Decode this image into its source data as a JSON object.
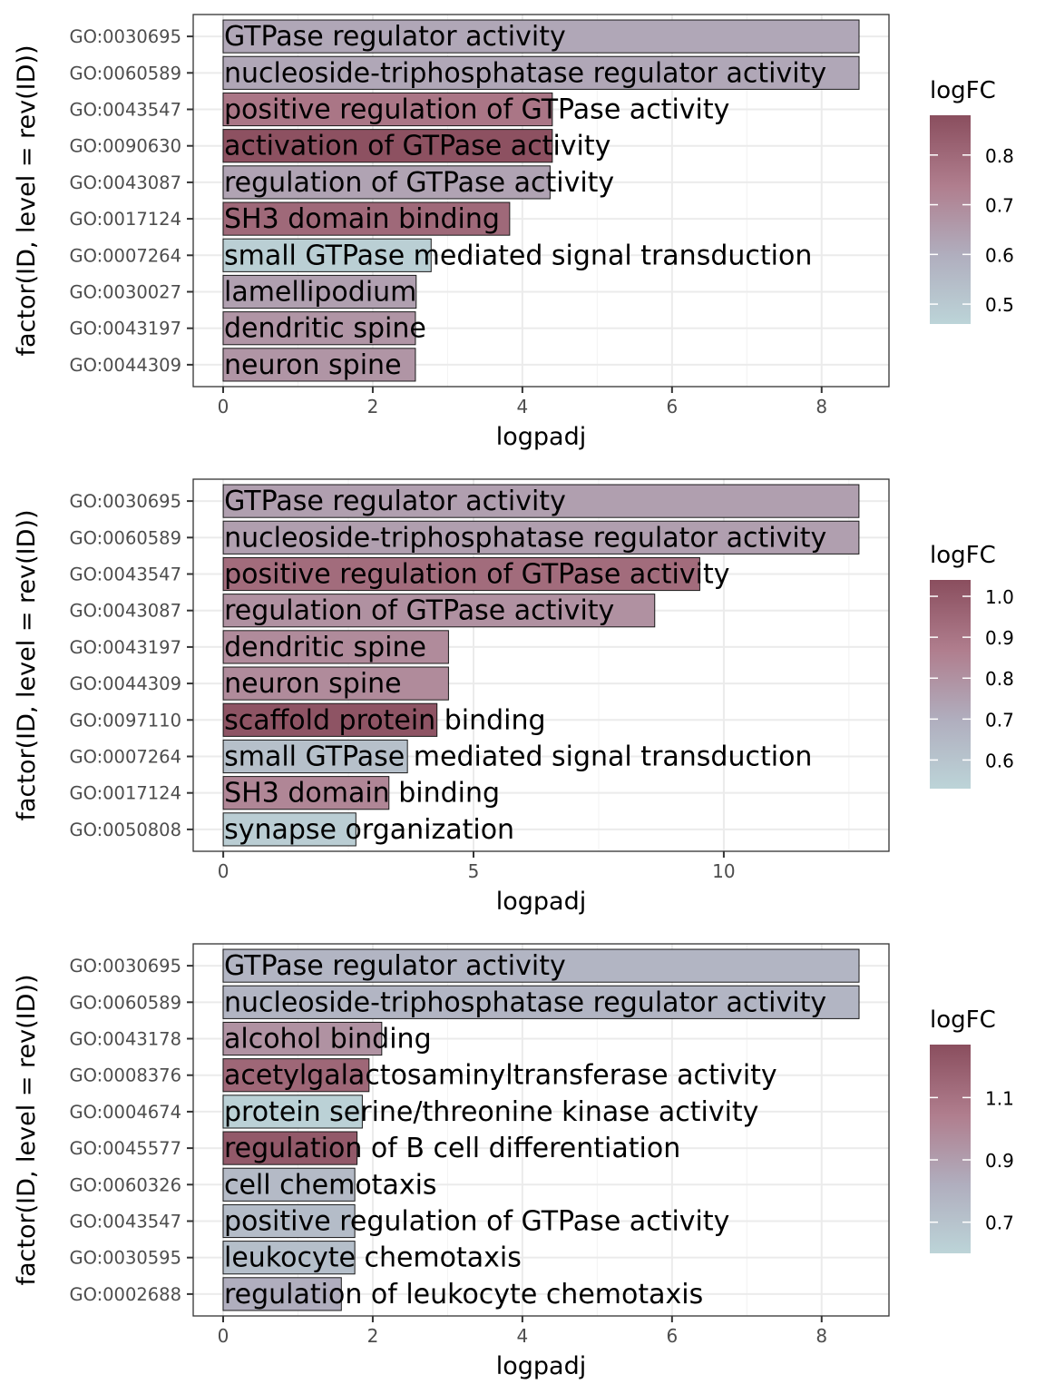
{
  "chart_data": [
    {
      "type": "bar",
      "orientation": "horizontal",
      "xlabel": "logpadj",
      "ylabel": "factor(ID, level = rev(ID))",
      "xlim": [
        -0.4,
        8.9
      ],
      "xticks": [
        0,
        2,
        4,
        6,
        8
      ],
      "grid": true,
      "legend_title": "logFC",
      "legend_position": "right",
      "legend_range": [
        0.46,
        0.88
      ],
      "legend_ticks": [
        0.5,
        0.6,
        0.7,
        0.8
      ],
      "legend_tick_labels": [
        "0.5",
        "0.6",
        "0.7",
        "0.8"
      ],
      "ids": [
        "GO:0030695",
        "GO:0060589",
        "GO:0043547",
        "GO:0090630",
        "GO:0043087",
        "GO:0017124",
        "GO:0007264",
        "GO:0030027",
        "GO:0043197",
        "GO:0044309"
      ],
      "descriptions": [
        "GTPase regulator activity",
        "nucleoside-triphosphatase regulator activity",
        "positive regulation of GTPase activity",
        "activation of GTPase activity",
        "regulation of GTPase activity",
        "SH3 domain binding",
        "small GTPase mediated signal transduction",
        "lamellipodium",
        "dendritic spine",
        "neuron spine"
      ],
      "values": [
        8.5,
        8.5,
        4.4,
        4.4,
        4.37,
        3.83,
        2.78,
        2.58,
        2.57,
        2.57
      ],
      "logFC": [
        0.62,
        0.62,
        0.76,
        0.87,
        0.63,
        0.8,
        0.48,
        0.64,
        0.67,
        0.67
      ]
    },
    {
      "type": "bar",
      "orientation": "horizontal",
      "xlabel": "logpadj",
      "ylabel": "factor(ID, level = rev(ID))",
      "xlim": [
        -0.6,
        13.3
      ],
      "xticks": [
        0,
        5,
        10
      ],
      "grid": true,
      "legend_title": "logFC",
      "legend_position": "right",
      "legend_range": [
        0.53,
        1.04
      ],
      "legend_ticks": [
        0.6,
        0.7,
        0.8,
        0.9,
        1.0
      ],
      "legend_tick_labels": [
        "0.6",
        "0.7",
        "0.8",
        "0.9",
        "1.0"
      ],
      "ids": [
        "GO:0030695",
        "GO:0060589",
        "GO:0043547",
        "GO:0043087",
        "GO:0043197",
        "GO:0044309",
        "GO:0097110",
        "GO:0007264",
        "GO:0017124",
        "GO:0050808"
      ],
      "descriptions": [
        "GTPase regulator activity",
        "nucleoside-triphosphatase regulator activity",
        "positive regulation of GTPase activity",
        "regulation of GTPase activity",
        "dendritic spine",
        "neuron spine",
        "scaffold protein binding",
        "small GTPase mediated signal transduction",
        "SH3 domain binding",
        "synapse organization"
      ],
      "values": [
        12.7,
        12.7,
        9.52,
        8.62,
        4.5,
        4.5,
        4.27,
        3.68,
        3.31,
        2.65
      ],
      "logFC": [
        0.75,
        0.75,
        0.93,
        0.8,
        0.82,
        0.82,
        1.02,
        0.62,
        0.84,
        0.56
      ]
    },
    {
      "type": "bar",
      "orientation": "horizontal",
      "xlabel": "logpadj",
      "ylabel": "factor(ID, level = rev(ID))",
      "xlim": [
        -0.4,
        8.9
      ],
      "xticks": [
        0,
        2,
        4,
        6,
        8
      ],
      "grid": true,
      "legend_title": "logFC",
      "legend_position": "right",
      "legend_range": [
        0.6,
        1.27
      ],
      "legend_ticks": [
        0.7,
        0.9,
        1.1
      ],
      "legend_tick_labels": [
        "0.7",
        "0.9",
        "1.1"
      ],
      "ids": [
        "GO:0030695",
        "GO:0060589",
        "GO:0043178",
        "GO:0008376",
        "GO:0004674",
        "GO:0045577",
        "GO:0060326",
        "GO:0043547",
        "GO:0030595",
        "GO:0002688"
      ],
      "descriptions": [
        "GTPase regulator activity",
        "nucleoside-triphosphatase regulator activity",
        "alcohol binding",
        "acetylgalactosaminyltransferase activity",
        "protein serine/threonine kinase activity",
        "regulation of B cell differentiation",
        "cell chemotaxis",
        "positive regulation of GTPase activity",
        "leukocyte chemotaxis",
        "regulation of leukocyte chemotaxis"
      ],
      "values": [
        8.5,
        8.5,
        2.12,
        1.95,
        1.86,
        1.79,
        1.76,
        1.76,
        1.76,
        1.58
      ],
      "logFC": [
        0.78,
        0.78,
        0.95,
        1.15,
        0.62,
        1.22,
        0.75,
        0.74,
        0.72,
        0.82
      ]
    }
  ]
}
